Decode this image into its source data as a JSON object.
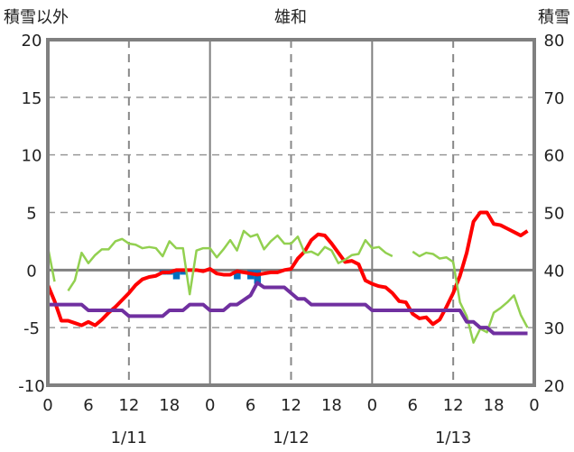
{
  "chart_data": {
    "type": "line",
    "title": "雄和",
    "ylabel_left": "積雪以外",
    "ylabel_right": "積雪",
    "ylim": [
      -10,
      20
    ],
    "ylim_right": [
      20,
      80
    ],
    "yticks": [
      20,
      15,
      10,
      5,
      0,
      -5,
      -10
    ],
    "yticks_right": [
      80,
      70,
      60,
      50,
      40,
      30,
      20
    ],
    "xticks": [
      "0",
      "6",
      "12",
      "18",
      "0",
      "6",
      "12",
      "18",
      "0",
      "6",
      "12",
      "18",
      "0"
    ],
    "date_labels": [
      "1/11",
      "1/12",
      "1/13"
    ],
    "x_hours": 72,
    "series": [
      {
        "name": "red",
        "color": "#ff0000",
        "values": [
          -1.3,
          -2.7,
          -4.4,
          -4.4,
          -4.6,
          -4.8,
          -4.5,
          -4.8,
          -4.3,
          -3.7,
          -3.2,
          -2.6,
          -2.0,
          -1.3,
          -0.8,
          -0.6,
          -0.5,
          -0.2,
          -0.2,
          0,
          0,
          0,
          0,
          -0.1,
          0.1,
          -0.3,
          -0.4,
          -0.4,
          -0.1,
          -0.2,
          -0.3,
          -0.4,
          -0.3,
          -0.2,
          -0.2,
          0,
          0.1,
          1.0,
          1.6,
          2.6,
          3.1,
          3.0,
          2.3,
          1.5,
          0.7,
          0.8,
          0.5,
          -0.9,
          -1.2,
          -1.4,
          -1.5,
          -2.0,
          -2.7,
          -2.8,
          -3.8,
          -4.2,
          -4.1,
          -4.7,
          -4.3,
          -3.2,
          -2.0,
          -0.5,
          1.5,
          4.2,
          5.0,
          5.0,
          4.0,
          3.9,
          3.6,
          3.3,
          3.0,
          3.4,
          3.4
        ]
      },
      {
        "name": "green",
        "color": "#92d050",
        "values": [
          2.0,
          -1.0,
          null,
          -1.8,
          -0.9,
          1.5,
          0.6,
          1.3,
          1.8,
          1.8,
          2.5,
          2.7,
          2.3,
          2.2,
          1.9,
          2.0,
          1.9,
          1.2,
          2.5,
          1.9,
          1.9,
          -2.1,
          1.7,
          1.9,
          1.9,
          1.1,
          1.8,
          2.6,
          1.7,
          3.4,
          2.9,
          3.1,
          1.8,
          2.5,
          3.0,
          2.3,
          2.3,
          2.9,
          1.5,
          1.6,
          1.3,
          2.0,
          1.7,
          0.6,
          0.9,
          1.3,
          1.4,
          2.6,
          1.9,
          2.0,
          1.5,
          1.2,
          null,
          null,
          1.6,
          1.2,
          1.5,
          1.4,
          1.0,
          1.1,
          0.7,
          -2.8,
          -4.0,
          -6.3,
          -5.1,
          -5.4,
          -3.7,
          -3.3,
          -2.8,
          -2.2,
          -3.9,
          -5.0,
          -4.5
        ]
      },
      {
        "name": "purple",
        "color": "#7030a0",
        "values": [
          -3,
          -3,
          -3,
          -3,
          -3,
          -3,
          -3.5,
          -3.5,
          -3.5,
          -3.5,
          -3.5,
          -3.5,
          -4,
          -4,
          -4,
          -4,
          -4,
          -4,
          -3.5,
          -3.5,
          -3.5,
          -3,
          -3,
          -3,
          -3.5,
          -3.5,
          -3.5,
          -3,
          -3,
          -2.6,
          -2.2,
          -1.1,
          -1.5,
          -1.5,
          -1.5,
          -1.5,
          -2,
          -2.5,
          -2.5,
          -3,
          -3,
          -3,
          -3,
          -3,
          -3,
          -3,
          -3,
          -3,
          -3.5,
          -3.5,
          -3.5,
          -3.5,
          -3.5,
          -3.5,
          -3.5,
          -3.5,
          -3.5,
          -3.5,
          -3.5,
          -3.5,
          -3.5,
          -3.5,
          -4.5,
          -4.5,
          -5,
          -5,
          -5.5,
          -5.5,
          -5.5,
          -5.5,
          -5.5,
          -5.5,
          -5.5
        ]
      },
      {
        "name": "blue-bars",
        "color": "#0070c0",
        "type": "bar",
        "values": {
          "17": -0.4,
          "18": -0.4,
          "19": -0.8,
          "20": -0.4,
          "28": -0.8,
          "30": -0.8,
          "31": -1.2
        }
      }
    ]
  }
}
